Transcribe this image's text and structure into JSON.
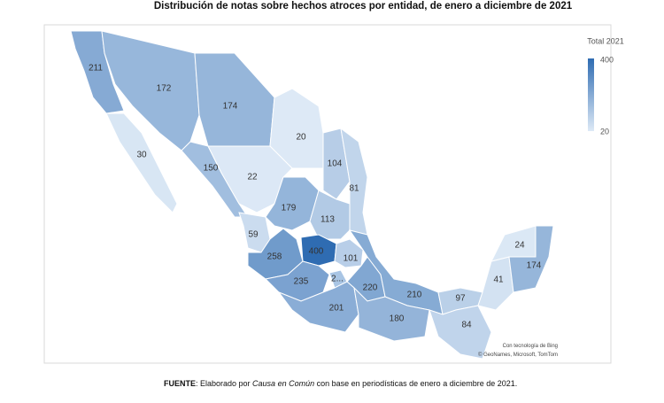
{
  "title": "Distribución de notas sobre hechos atroces por entidad, de enero a diciembre de 2021",
  "map": {
    "legend_title": "Total 2021",
    "scale": {
      "min": 20,
      "max": 400,
      "colors": [
        "#dde9f6",
        "#2f6cb2"
      ]
    },
    "regions": [
      {
        "value": 211
      },
      {
        "value": 30
      },
      {
        "value": 172
      },
      {
        "value": 174
      },
      {
        "value": 20
      },
      {
        "value": 150
      },
      {
        "value": 22
      },
      {
        "value": 104
      },
      {
        "value": 81
      },
      {
        "value": 179
      },
      {
        "value": 113
      },
      {
        "value": 59
      },
      {
        "value": 258
      },
      {
        "value": 400
      },
      {
        "value": 101
      },
      {
        "value": 235
      },
      {
        "value": null,
        "label": "2..."
      },
      {
        "value": 220
      },
      {
        "value": 210
      },
      {
        "value": 201
      },
      {
        "value": 180
      },
      {
        "value": 97
      },
      {
        "value": 84
      },
      {
        "value": 41
      },
      {
        "value": 24
      },
      {
        "value": 174
      }
    ],
    "credits": [
      "Con tecnología de Bing",
      "© GeoNames, Microsoft, TomTom"
    ]
  },
  "footer": {
    "parts": [
      "FUENTE",
      ": Elaborado por ",
      "Causa en Común",
      " con base en periodísticas de enero a diciembre de 2021."
    ]
  }
}
